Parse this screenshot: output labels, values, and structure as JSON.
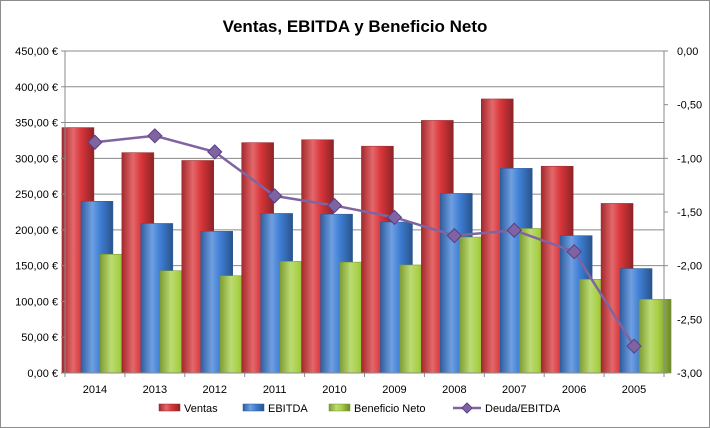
{
  "chart_data": {
    "type": "bar",
    "title": "Ventas, EBITDA y Beneficio Neto",
    "categories": [
      "2014",
      "2013",
      "2012",
      "2011",
      "2010",
      "2009",
      "2008",
      "2007",
      "2006",
      "2005"
    ],
    "series": [
      {
        "name": "Ventas",
        "kind": "bar",
        "axis": "left",
        "color": "#d9363a",
        "values": [
          343,
          308,
          297,
          322,
          326,
          317,
          353,
          383,
          289,
          237
        ]
      },
      {
        "name": "EBITDA",
        "kind": "bar",
        "axis": "left",
        "color": "#3f7fd6",
        "values": [
          240,
          209,
          198,
          223,
          222,
          211,
          251,
          286,
          192,
          146
        ]
      },
      {
        "name": "Beneficio Neto",
        "kind": "bar",
        "axis": "left",
        "color": "#a6cf44",
        "values": [
          166,
          143,
          136,
          156,
          155,
          151,
          190,
          202,
          131,
          103
        ]
      },
      {
        "name": "Deuda/EBITDA",
        "kind": "line",
        "axis": "right",
        "color": "#8064a2",
        "values": [
          -0.85,
          -0.79,
          -0.94,
          -1.35,
          -1.44,
          -1.55,
          -1.72,
          -1.67,
          -1.87,
          -2.75
        ]
      }
    ],
    "y_left": {
      "min": 0,
      "max": 450,
      "step": 50,
      "tick_labels": [
        "0,00 €",
        "50,00 €",
        "100,00 €",
        "150,00 €",
        "200,00 €",
        "250,00 €",
        "300,00 €",
        "350,00 €",
        "400,00 €",
        "450,00 €"
      ]
    },
    "y_right": {
      "min": -3,
      "max": 0,
      "step": 0.5,
      "tick_labels": [
        "-3,00",
        "-2,50",
        "-2,00",
        "-1,50",
        "-1,00",
        "-0,50",
        "0,00"
      ]
    },
    "grid": true,
    "legend_position": "bottom"
  }
}
